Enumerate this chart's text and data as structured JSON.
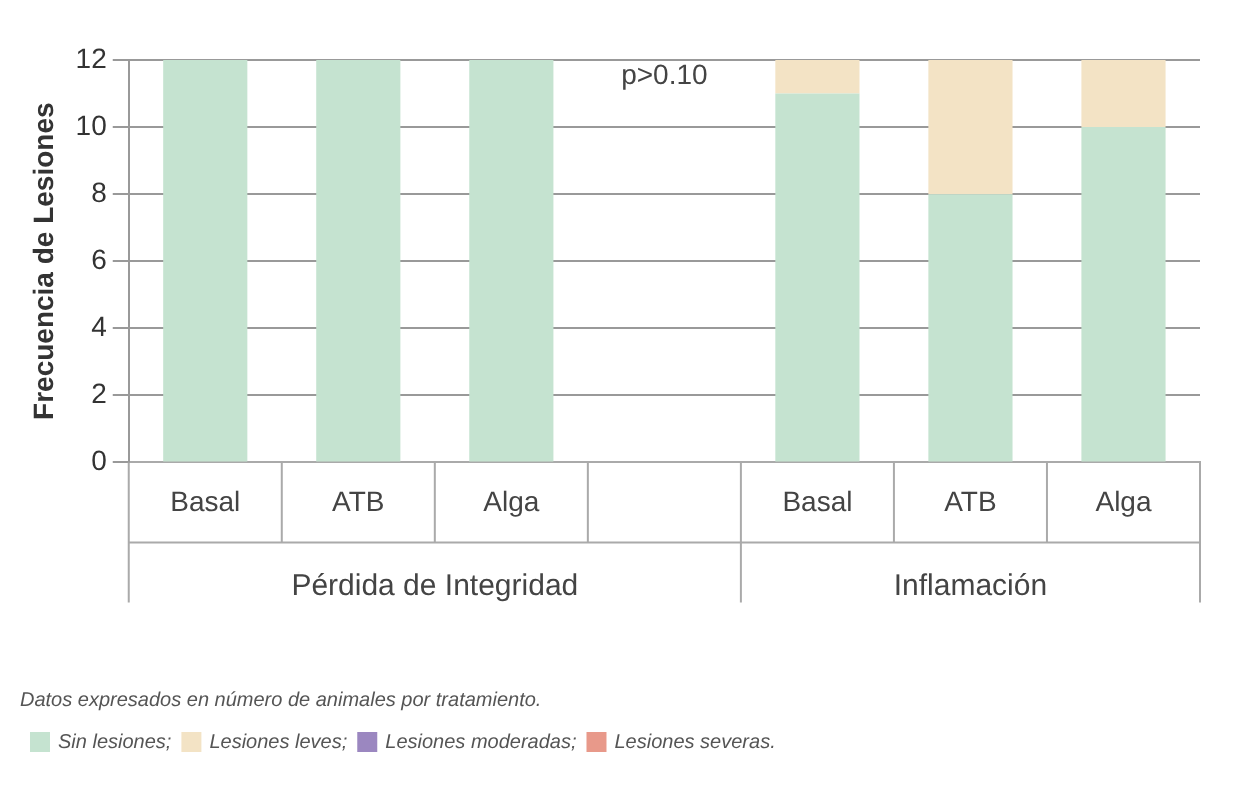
{
  "chart_data": {
    "type": "bar",
    "stacked": true,
    "ylabel": "Frecuencia de Lesiones",
    "categories": [
      "Basal",
      "ATB",
      "Alga",
      null,
      "Basal",
      "ATB",
      "Alga"
    ],
    "series": [
      {
        "name": "Sin lesiones;",
        "color": "#c5e3d0",
        "values": [
          12,
          12,
          12,
          null,
          11,
          8,
          10
        ]
      },
      {
        "name": "Lesiones leves;",
        "color": "#f3e3c5",
        "values": [
          0,
          0,
          0,
          null,
          1,
          4,
          2
        ]
      },
      {
        "name": "Lesiones moderadas;",
        "color": "#9b87c0",
        "values": [
          0,
          0,
          0,
          null,
          0,
          0,
          0
        ]
      },
      {
        "name": "Lesiones severas.",
        "color": "#e8998a",
        "values": [
          0,
          0,
          0,
          null,
          0,
          0,
          0
        ]
      }
    ],
    "ylim": [
      0,
      12
    ],
    "yticks": [
      0,
      2,
      4,
      6,
      8,
      10,
      12
    ],
    "grid": "y",
    "legend": "bottom",
    "annotations": [
      "p>0.10",
      "Pérdida de Integridad",
      "Inflamación",
      "Datos expresados en número de animales por tratamiento."
    ]
  }
}
